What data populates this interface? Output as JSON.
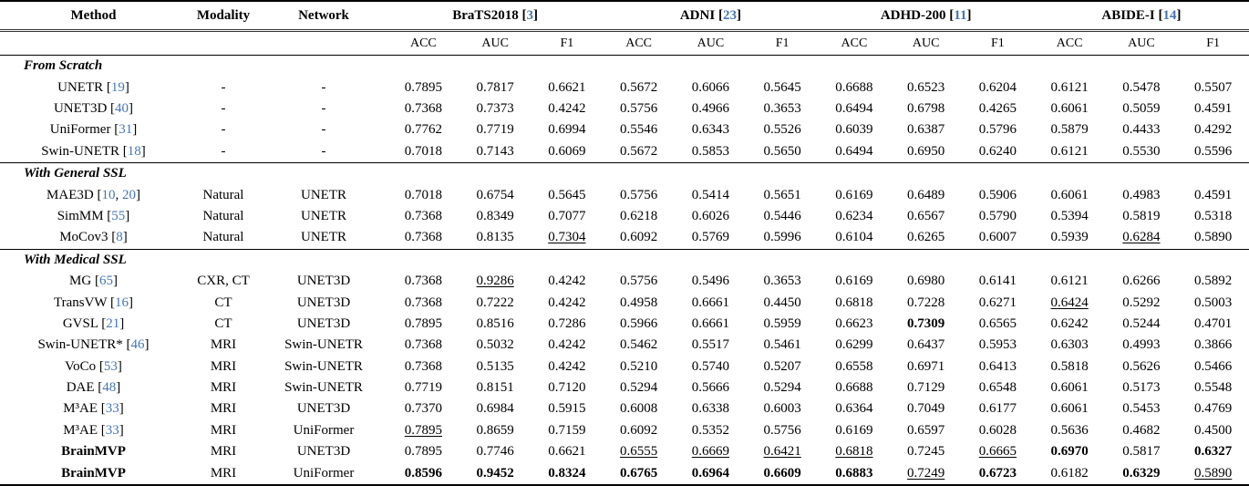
{
  "accent": {
    "citation_color": "#4576b5"
  },
  "table": {
    "columns": [
      "Method",
      "Modality",
      "Network"
    ],
    "metric_headers": [
      "ACC",
      "AUC",
      "F1"
    ],
    "dataset_groups": [
      {
        "name": "BraTS2018",
        "ref": "3"
      },
      {
        "name": "ADNI",
        "ref": "23"
      },
      {
        "name": "ADHD-200",
        "ref": "11"
      },
      {
        "name": "ABIDE-I",
        "ref": "14"
      }
    ],
    "punctuation": {
      "open": " [",
      "close": "]",
      "sep": ", "
    },
    "sections": [
      {
        "title": "From Scratch",
        "rows": [
          {
            "method": "UNETR",
            "refs": [
              "19"
            ],
            "bold_method": false,
            "modality": "-",
            "network": "-",
            "values": [
              "0.7895",
              "0.7817",
              "0.6621",
              "0.5672",
              "0.6066",
              "0.5645",
              "0.6688",
              "0.6523",
              "0.6204",
              "0.6121",
              "0.5478",
              "0.5507"
            ],
            "marks": [
              "",
              "",
              "",
              "",
              "",
              "",
              "",
              "",
              "",
              "",
              "",
              ""
            ]
          },
          {
            "method": "UNET3D",
            "refs": [
              "40"
            ],
            "bold_method": false,
            "modality": "-",
            "network": "-",
            "values": [
              "0.7368",
              "0.7373",
              "0.4242",
              "0.5756",
              "0.4966",
              "0.3653",
              "0.6494",
              "0.6798",
              "0.4265",
              "0.6061",
              "0.5059",
              "0.4591"
            ],
            "marks": [
              "",
              "",
              "",
              "",
              "",
              "",
              "",
              "",
              "",
              "",
              "",
              ""
            ]
          },
          {
            "method": "UniFormer",
            "refs": [
              "31"
            ],
            "bold_method": false,
            "modality": "-",
            "network": "-",
            "values": [
              "0.7762",
              "0.7719",
              "0.6994",
              "0.5546",
              "0.6343",
              "0.5526",
              "0.6039",
              "0.6387",
              "0.5796",
              "0.5879",
              "0.4433",
              "0.4292"
            ],
            "marks": [
              "",
              "",
              "",
              "",
              "",
              "",
              "",
              "",
              "",
              "",
              "",
              ""
            ]
          },
          {
            "method": "Swin-UNETR",
            "refs": [
              "18"
            ],
            "bold_method": false,
            "modality": "-",
            "network": "-",
            "values": [
              "0.7018",
              "0.7143",
              "0.6069",
              "0.5672",
              "0.5853",
              "0.5650",
              "0.6494",
              "0.6950",
              "0.6240",
              "0.6121",
              "0.5530",
              "0.5596"
            ],
            "marks": [
              "",
              "",
              "",
              "",
              "",
              "",
              "",
              "",
              "",
              "",
              "",
              ""
            ]
          }
        ]
      },
      {
        "title": "With General SSL",
        "rows": [
          {
            "method": "MAE3D",
            "refs": [
              "10",
              "20"
            ],
            "bold_method": false,
            "modality": "Natural",
            "network": "UNETR",
            "values": [
              "0.7018",
              "0.6754",
              "0.5645",
              "0.5756",
              "0.5414",
              "0.5651",
              "0.6169",
              "0.6489",
              "0.5906",
              "0.6061",
              "0.4983",
              "0.4591"
            ],
            "marks": [
              "",
              "",
              "",
              "",
              "",
              "",
              "",
              "",
              "",
              "",
              "",
              ""
            ]
          },
          {
            "method": "SimMM",
            "refs": [
              "55"
            ],
            "bold_method": false,
            "modality": "Natural",
            "network": "UNETR",
            "values": [
              "0.7368",
              "0.8349",
              "0.7077",
              "0.6218",
              "0.6026",
              "0.5446",
              "0.6234",
              "0.6567",
              "0.5790",
              "0.5394",
              "0.5819",
              "0.5318"
            ],
            "marks": [
              "",
              "",
              "",
              "",
              "",
              "",
              "",
              "",
              "",
              "",
              "",
              ""
            ]
          },
          {
            "method": "MoCov3",
            "refs": [
              "8"
            ],
            "bold_method": false,
            "modality": "Natural",
            "network": "UNETR",
            "values": [
              "0.7368",
              "0.8135",
              "0.7304",
              "0.6092",
              "0.5769",
              "0.5996",
              "0.6104",
              "0.6265",
              "0.6007",
              "0.5939",
              "0.6284",
              "0.5890"
            ],
            "marks": [
              "",
              "",
              "u",
              "",
              "",
              "",
              "",
              "",
              "",
              "",
              "u",
              ""
            ]
          }
        ]
      },
      {
        "title": "With Medical SSL",
        "rows": [
          {
            "method": "MG",
            "refs": [
              "65"
            ],
            "bold_method": false,
            "modality": "CXR, CT",
            "network": "UNET3D",
            "values": [
              "0.7368",
              "0.9286",
              "0.4242",
              "0.5756",
              "0.5496",
              "0.3653",
              "0.6169",
              "0.6980",
              "0.6141",
              "0.6121",
              "0.6266",
              "0.5892"
            ],
            "marks": [
              "",
              "u",
              "",
              "",
              "",
              "",
              "",
              "",
              "",
              "",
              "",
              ""
            ]
          },
          {
            "method": "TransVW",
            "refs": [
              "16"
            ],
            "bold_method": false,
            "modality": "CT",
            "network": "UNET3D",
            "values": [
              "0.7368",
              "0.7222",
              "0.4242",
              "0.4958",
              "0.6661",
              "0.4450",
              "0.6818",
              "0.7228",
              "0.6271",
              "0.6424",
              "0.5292",
              "0.5003"
            ],
            "marks": [
              "",
              "",
              "",
              "",
              "",
              "",
              "",
              "",
              "",
              "u",
              "",
              ""
            ]
          },
          {
            "method": "GVSL",
            "refs": [
              "21"
            ],
            "bold_method": false,
            "modality": "CT",
            "network": "UNET3D",
            "values": [
              "0.7895",
              "0.8516",
              "0.7286",
              "0.5966",
              "0.6661",
              "0.5959",
              "0.6623",
              "0.7309",
              "0.6565",
              "0.6242",
              "0.5244",
              "0.4701"
            ],
            "marks": [
              "",
              "",
              "",
              "",
              "",
              "",
              "",
              "b",
              "",
              "",
              "",
              ""
            ]
          },
          {
            "method": "Swin-UNETR* ",
            "refs": [
              "46"
            ],
            "bold_method": false,
            "modality": "MRI",
            "network": "Swin-UNETR",
            "values": [
              "0.7368",
              "0.5032",
              "0.4242",
              "0.5462",
              "0.5517",
              "0.5461",
              "0.6299",
              "0.6437",
              "0.5953",
              "0.6303",
              "0.4993",
              "0.3866"
            ],
            "marks": [
              "",
              "",
              "",
              "",
              "",
              "",
              "",
              "",
              "",
              "",
              "",
              ""
            ]
          },
          {
            "method": "VoCo",
            "refs": [
              "53"
            ],
            "bold_method": false,
            "modality": "MRI",
            "network": "Swin-UNETR",
            "values": [
              "0.7368",
              "0.5135",
              "0.4242",
              "0.5210",
              "0.5740",
              "0.5207",
              "0.6558",
              "0.6971",
              "0.6413",
              "0.5818",
              "0.5626",
              "0.5466"
            ],
            "marks": [
              "",
              "",
              "",
              "",
              "",
              "",
              "",
              "",
              "",
              "",
              "",
              ""
            ]
          },
          {
            "method": "DAE",
            "refs": [
              "48"
            ],
            "bold_method": false,
            "modality": "MRI",
            "network": "Swin-UNETR",
            "values": [
              "0.7719",
              "0.8151",
              "0.7120",
              "0.5294",
              "0.5666",
              "0.5294",
              "0.6688",
              "0.7129",
              "0.6548",
              "0.6061",
              "0.5173",
              "0.5548"
            ],
            "marks": [
              "",
              "",
              "",
              "",
              "",
              "",
              "",
              "",
              "",
              "",
              "",
              ""
            ]
          },
          {
            "method": "M³AE",
            "refs": [
              "33"
            ],
            "bold_method": false,
            "modality": "MRI",
            "network": "UNET3D",
            "values": [
              "0.7370",
              "0.6984",
              "0.5915",
              "0.6008",
              "0.6338",
              "0.6003",
              "0.6364",
              "0.7049",
              "0.6177",
              "0.6061",
              "0.5453",
              "0.4769"
            ],
            "marks": [
              "",
              "",
              "",
              "",
              "",
              "",
              "",
              "",
              "",
              "",
              "",
              ""
            ]
          },
          {
            "method": "M³AE",
            "refs": [
              "33"
            ],
            "bold_method": false,
            "modality": "MRI",
            "network": "UniFormer",
            "values": [
              "0.7895",
              "0.8659",
              "0.7159",
              "0.6092",
              "0.5352",
              "0.5756",
              "0.6169",
              "0.6597",
              "0.6028",
              "0.5636",
              "0.4682",
              "0.4500"
            ],
            "marks": [
              "u",
              "",
              "",
              "",
              "",
              "",
              "",
              "",
              "",
              "",
              "",
              ""
            ]
          },
          {
            "method": "BrainMVP",
            "refs": [],
            "bold_method": true,
            "modality": "MRI",
            "network": "UNET3D",
            "values": [
              "0.7895",
              "0.7746",
              "0.6621",
              "0.6555",
              "0.6669",
              "0.6421",
              "0.6818",
              "0.7245",
              "0.6665",
              "0.6970",
              "0.5817",
              "0.6327"
            ],
            "marks": [
              "",
              "",
              "",
              "u",
              "u",
              "u",
              "u",
              "",
              "u",
              "b",
              "",
              "b"
            ]
          },
          {
            "method": "BrainMVP",
            "refs": [],
            "bold_method": true,
            "modality": "MRI",
            "network": "UniFormer",
            "values": [
              "0.8596",
              "0.9452",
              "0.8324",
              "0.6765",
              "0.6964",
              "0.6609",
              "0.6883",
              "0.7249",
              "0.6723",
              "0.6182",
              "0.6329",
              "0.5890"
            ],
            "marks": [
              "b",
              "b",
              "b",
              "b",
              "b",
              "b",
              "b",
              "u",
              "b",
              "",
              "b",
              "u"
            ]
          }
        ]
      }
    ]
  }
}
